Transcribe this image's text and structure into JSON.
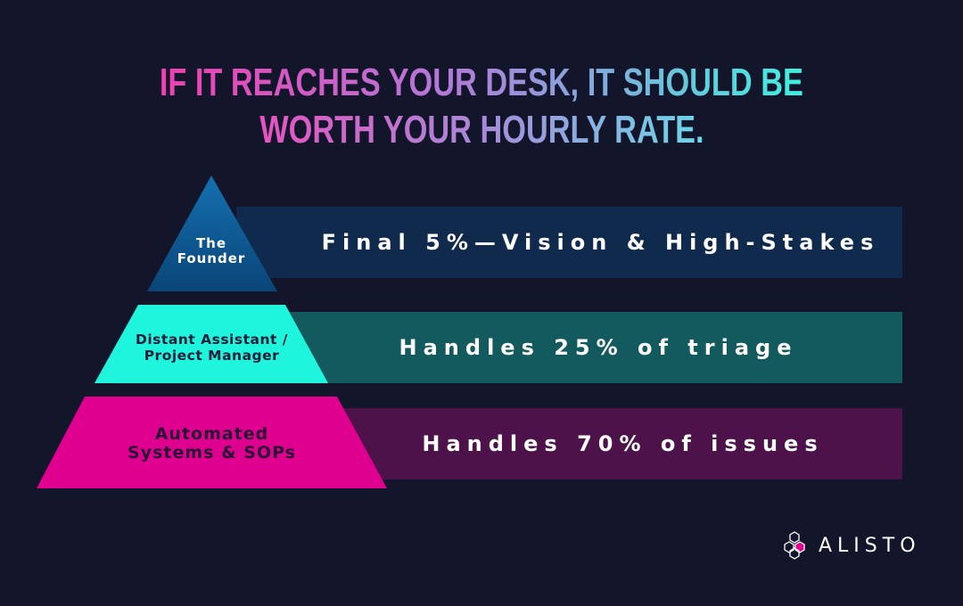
{
  "title": {
    "line1": "IF IT REACHES YOUR DESK, IT SHOULD BE",
    "line2": "WORTH YOUR HOURLY RATE."
  },
  "tiers": [
    {
      "label": "The Founder",
      "label_line1": "The",
      "label_line2": "Founder",
      "description": "Final 5%—Vision & High-Stakes",
      "shape_color": "#0c4f85",
      "bar_color": "#0f2a4d"
    },
    {
      "label": "Distant Assistant / Project Manager",
      "label_line1": "Distant Assistant /",
      "label_line2": "Project Manager",
      "description": "Handles 25% of triage",
      "shape_color": "#1ff5dc",
      "bar_color": "#135a5e"
    },
    {
      "label": "Automated Systems & SOPs",
      "label_line1": "Automated",
      "label_line2": "Systems & SOPs",
      "description": "Handles 70% of issues",
      "shape_color": "#e0008f",
      "bar_color": "#4c1249"
    }
  ],
  "logo": {
    "text": "ALISTO",
    "icon": "hexagon-cluster-icon",
    "accent": "#e0008f"
  },
  "colors": {
    "background": "#13152b"
  }
}
